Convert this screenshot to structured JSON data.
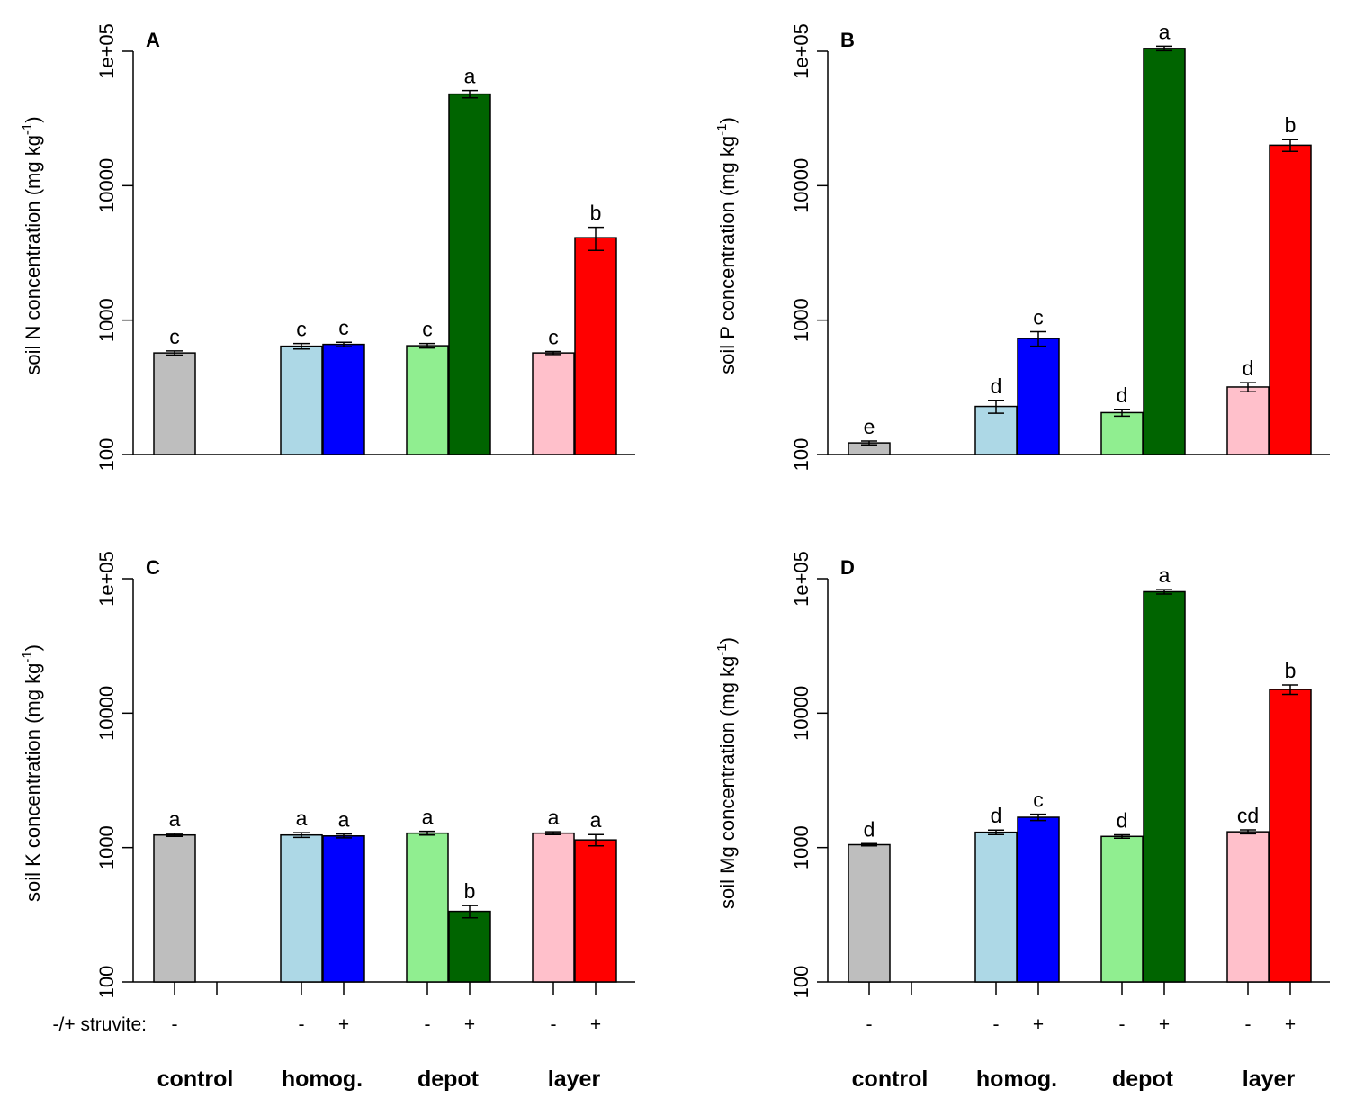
{
  "chart_data": [
    {
      "type": "bar",
      "panel": "A",
      "title": "",
      "xlabel": "",
      "ylabel": "soil N concentration (mg kg^-1)",
      "yscale": "log",
      "ylim": [
        100,
        100000
      ],
      "yticks": [
        "100",
        "1000",
        "10000",
        "1e+05"
      ],
      "categories": [
        "control -",
        "homog. -",
        "homog. +",
        "depot -",
        "depot +",
        "layer -",
        "layer +"
      ],
      "values": [
        570,
        640,
        660,
        645,
        48000,
        570,
        4100
      ],
      "errors": [
        20,
        30,
        25,
        25,
        3000,
        15,
        800
      ],
      "letters": [
        "c",
        "c",
        "c",
        "c",
        "a",
        "c",
        "b"
      ]
    },
    {
      "type": "bar",
      "panel": "B",
      "title": "",
      "xlabel": "",
      "ylabel": "soil P concentration (mg kg^-1)",
      "yscale": "log",
      "ylim": [
        100,
        100000
      ],
      "yticks": [
        "100",
        "1000",
        "10000",
        "1e+05"
      ],
      "categories": [
        "control -",
        "homog. -",
        "homog. +",
        "depot -",
        "depot +",
        "layer -",
        "layer +"
      ],
      "values": [
        122,
        228,
        730,
        205,
        105000,
        318,
        20000
      ],
      "errors": [
        4,
        25,
        90,
        12,
        4000,
        25,
        2000
      ],
      "letters": [
        "e",
        "d",
        "c",
        "d",
        "a",
        "d",
        "b"
      ]
    },
    {
      "type": "bar",
      "panel": "C",
      "title": "",
      "xlabel": "",
      "ylabel": "soil K concentration (mg kg^-1)",
      "yscale": "log",
      "ylim": [
        100,
        100000
      ],
      "yticks": [
        "100",
        "1000",
        "10000",
        "1e+05"
      ],
      "categories": [
        "control -",
        "homog. -",
        "homog. +",
        "depot -",
        "depot +",
        "layer -",
        "layer +"
      ],
      "values": [
        1240,
        1240,
        1220,
        1280,
        335,
        1280,
        1140
      ],
      "errors": [
        30,
        50,
        40,
        40,
        35,
        30,
        110
      ],
      "letters": [
        "a",
        "a",
        "a",
        "a",
        "b",
        "a",
        "a"
      ]
    },
    {
      "type": "bar",
      "panel": "D",
      "title": "",
      "xlabel": "",
      "ylabel": "soil Mg concentration (mg kg^-1)",
      "yscale": "log",
      "ylim": [
        100,
        100000
      ],
      "yticks": [
        "100",
        "1000",
        "10000",
        "1e+05"
      ],
      "categories": [
        "control -",
        "homog. -",
        "homog. +",
        "depot -",
        "depot +",
        "layer -",
        "layer +"
      ],
      "values": [
        1050,
        1300,
        1680,
        1210,
        80000,
        1310,
        15000
      ],
      "errors": [
        20,
        50,
        90,
        35,
        3000,
        45,
        1200
      ],
      "letters": [
        "d",
        "d",
        "c",
        "d",
        "a",
        "cd",
        "b"
      ]
    }
  ],
  "bar_colors": [
    "#bebebe",
    "#add8e6",
    "#0000ff",
    "#90ee90",
    "#006400",
    "#ffc0cb",
    "#ff0000"
  ],
  "struvite_label": "-/+ struvite:",
  "struvite_signs": [
    "-",
    "-",
    "+",
    "-",
    "+",
    "-",
    "+"
  ],
  "group_labels": [
    "control",
    "homog.",
    "depot",
    "layer"
  ],
  "ylabel_unit_superscript": "-1"
}
